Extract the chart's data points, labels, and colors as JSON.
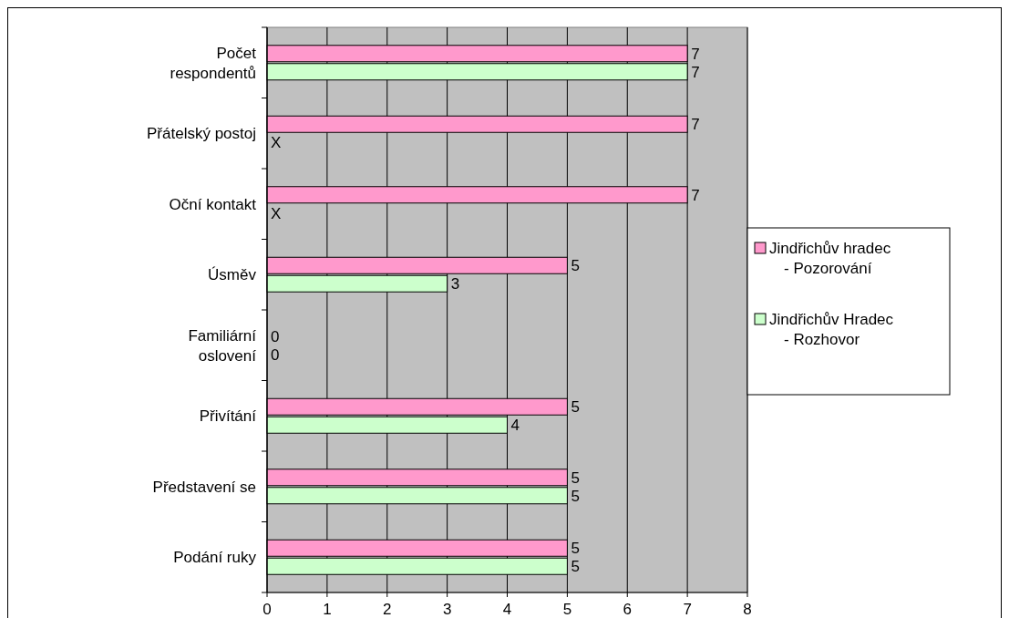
{
  "chart_data": {
    "type": "bar",
    "orientation": "horizontal",
    "categories": [
      "Počet respondentů",
      "Přátelský postoj",
      "Oční kontakt",
      "Úsměv",
      "Familiární oslovení",
      "Přivítání",
      "Představení se",
      "Podání ruky"
    ],
    "series": [
      {
        "name": "Jindřichův hradec - Pozorování",
        "color": "#ff99cc",
        "values": [
          7,
          7,
          7,
          5,
          0,
          5,
          5,
          5
        ],
        "value_labels": [
          "7",
          "7",
          "7",
          "5",
          "0",
          "5",
          "5",
          "5"
        ]
      },
      {
        "name": "Jindřichův Hradec - Rozhovor",
        "color": "#ccffcc",
        "values": [
          7,
          null,
          null,
          3,
          0,
          4,
          5,
          5
        ],
        "value_labels": [
          "7",
          "X",
          "X",
          "3",
          "0",
          "4",
          "5",
          "5"
        ]
      }
    ],
    "xlim": [
      0,
      8
    ],
    "xticks": [
      0,
      1,
      2,
      3,
      4,
      5,
      6,
      7,
      8
    ],
    "grid": "x",
    "legend": "right"
  }
}
